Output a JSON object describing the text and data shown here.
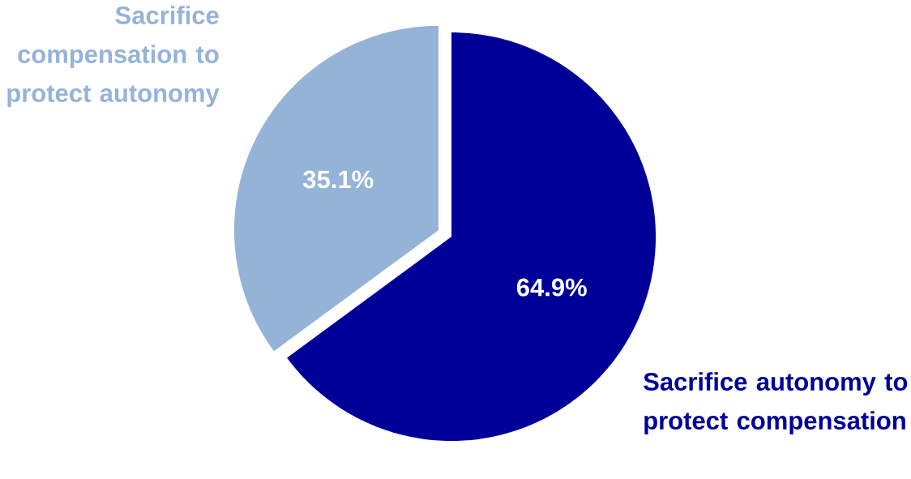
{
  "chart_data": {
    "type": "pie",
    "categories": [
      "Sacrifice autonomy to protect compensation",
      "Sacrifice compensation to protect autonomy"
    ],
    "values": [
      64.9,
      35.1
    ],
    "colors": [
      "#000099",
      "#95b3d7"
    ],
    "value_labels": [
      "64.9%",
      "35.1%"
    ]
  }
}
